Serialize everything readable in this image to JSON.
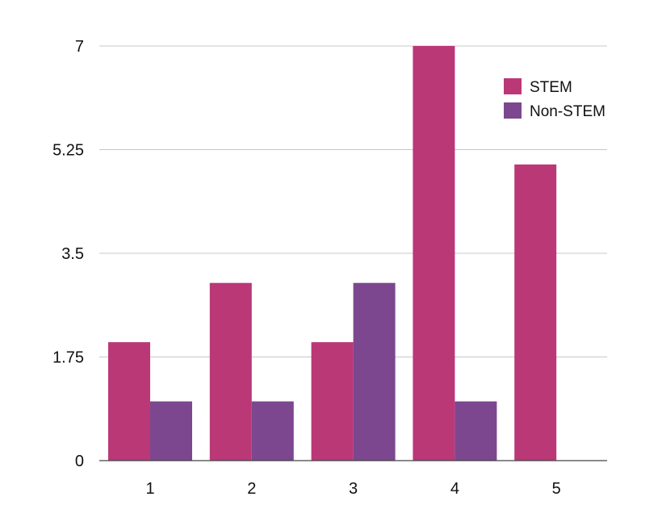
{
  "chart_data": {
    "type": "bar",
    "title": "",
    "xlabel": "",
    "ylabel": "",
    "categories": [
      "1",
      "2",
      "3",
      "4",
      "5"
    ],
    "series": [
      {
        "name": "STEM",
        "values": [
          2,
          3,
          2,
          7,
          5
        ],
        "color": "#bb3877"
      },
      {
        "name": "Non-STEM",
        "values": [
          1,
          1,
          3,
          1,
          0
        ],
        "color": "#7c478f"
      }
    ],
    "ylim": [
      0,
      7
    ],
    "yticks": [
      "0",
      "1.75",
      "3.5",
      "5.25",
      "7"
    ],
    "ytick_values": [
      0,
      1.75,
      3.5,
      5.25,
      7
    ],
    "grid": true,
    "legend_position": "top-right"
  }
}
